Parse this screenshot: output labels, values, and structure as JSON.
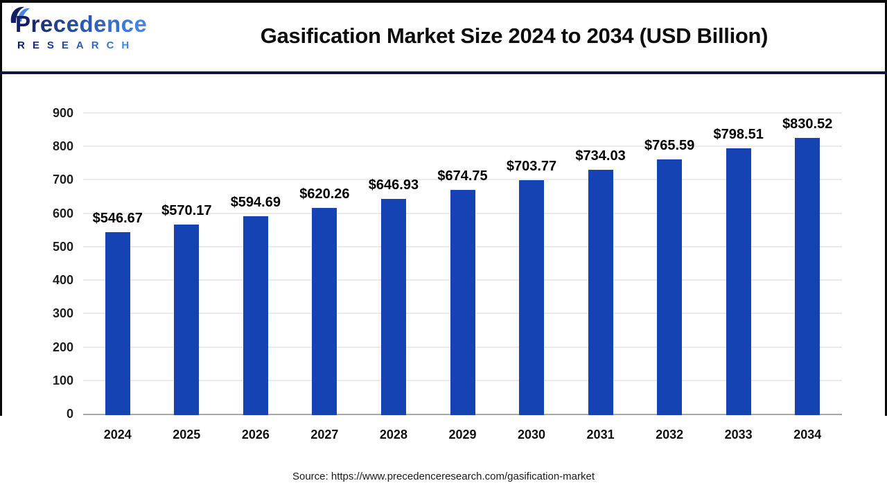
{
  "header": {
    "logo": {
      "name": "Precedence",
      "subtitle": "RESEARCH"
    },
    "title": "Gasification Market Size 2024 to 2034 (USD Billion)"
  },
  "chart_data": {
    "type": "bar",
    "title": "Gasification Market Size 2024 to 2034 (USD Billion)",
    "categories": [
      "2024",
      "2025",
      "2026",
      "2027",
      "2028",
      "2029",
      "2030",
      "2031",
      "2032",
      "2033",
      "2034"
    ],
    "values": [
      546.67,
      570.17,
      594.69,
      620.26,
      646.93,
      674.75,
      703.77,
      734.03,
      765.59,
      798.51,
      830.52
    ],
    "value_labels": [
      "$546.67",
      "$570.17",
      "$594.69",
      "$620.26",
      "$646.93",
      "$674.75",
      "$703.77",
      "$734.03",
      "$765.59",
      "$798.51",
      "$830.52"
    ],
    "xlabel": "",
    "ylabel": "",
    "ylim": [
      0,
      900
    ],
    "y_ticks": [
      0,
      100,
      200,
      300,
      400,
      500,
      600,
      700,
      800,
      900
    ],
    "grid": true,
    "legend_position": "none",
    "bar_color": "#1543b4"
  },
  "footer": {
    "source": "Source: https://www.precedenceresearch.com/gasification-market"
  },
  "colors": {
    "bar": "#1543b4",
    "divider": "#131340",
    "frame_border": "#0a0a0a",
    "gridline": "#ebebeb",
    "baseline": "#a8a8a8",
    "logo_dark": "#141f63",
    "logo_light": "#3f86e8"
  }
}
